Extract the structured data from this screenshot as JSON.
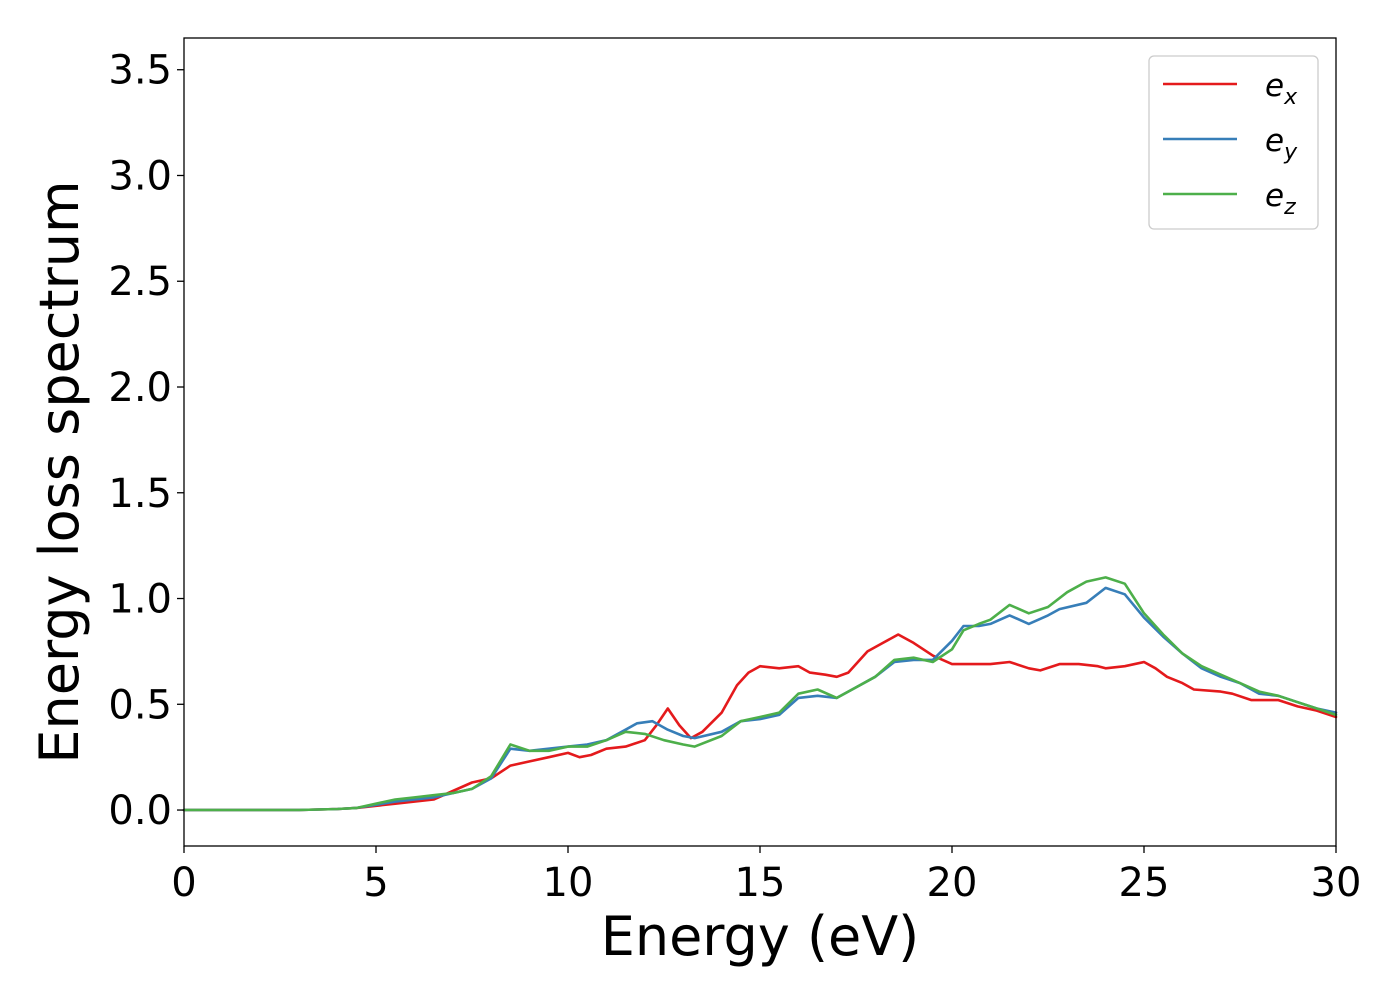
{
  "chart_data": {
    "type": "line",
    "title": "",
    "xlabel": "Energy (eV)",
    "ylabel": "Energy loss spectrum",
    "xlim": [
      0,
      30
    ],
    "ylim": [
      -0.17,
      3.65
    ],
    "xticks": [
      0,
      5,
      10,
      15,
      20,
      25,
      30
    ],
    "yticks": [
      0.0,
      0.5,
      1.0,
      1.5,
      2.0,
      2.5,
      3.0,
      3.5
    ],
    "xtick_labels": [
      "0",
      "5",
      "10",
      "15",
      "20",
      "25",
      "30"
    ],
    "ytick_labels": [
      "0.0",
      "0.5",
      "1.0",
      "1.5",
      "2.0",
      "2.5",
      "3.0",
      "3.5"
    ],
    "grid": false,
    "legend_position": "top-right",
    "series": [
      {
        "name": "e",
        "subscript": "x",
        "color": "#e41a1c",
        "points": [
          [
            0,
            0
          ],
          [
            3,
            0
          ],
          [
            4,
            0.005
          ],
          [
            4.5,
            0.01
          ],
          [
            5,
            0.02
          ],
          [
            5.5,
            0.03
          ],
          [
            6,
            0.04
          ],
          [
            6.5,
            0.05
          ],
          [
            7,
            0.09
          ],
          [
            7.5,
            0.13
          ],
          [
            8,
            0.15
          ],
          [
            8.5,
            0.21
          ],
          [
            9,
            0.23
          ],
          [
            9.5,
            0.25
          ],
          [
            10,
            0.27
          ],
          [
            10.3,
            0.25
          ],
          [
            10.6,
            0.26
          ],
          [
            11,
            0.29
          ],
          [
            11.5,
            0.3
          ],
          [
            12,
            0.33
          ],
          [
            12.3,
            0.4
          ],
          [
            12.6,
            0.48
          ],
          [
            12.9,
            0.4
          ],
          [
            13.2,
            0.34
          ],
          [
            13.5,
            0.37
          ],
          [
            14,
            0.46
          ],
          [
            14.4,
            0.59
          ],
          [
            14.7,
            0.65
          ],
          [
            15,
            0.68
          ],
          [
            15.5,
            0.67
          ],
          [
            16,
            0.68
          ],
          [
            16.3,
            0.65
          ],
          [
            16.7,
            0.64
          ],
          [
            17,
            0.63
          ],
          [
            17.3,
            0.65
          ],
          [
            17.8,
            0.75
          ],
          [
            18.2,
            0.79
          ],
          [
            18.6,
            0.83
          ],
          [
            19,
            0.79
          ],
          [
            19.5,
            0.73
          ],
          [
            20,
            0.69
          ],
          [
            20.5,
            0.69
          ],
          [
            21,
            0.69
          ],
          [
            21.5,
            0.7
          ],
          [
            22,
            0.67
          ],
          [
            22.3,
            0.66
          ],
          [
            22.8,
            0.69
          ],
          [
            23.3,
            0.69
          ],
          [
            23.8,
            0.68
          ],
          [
            24,
            0.67
          ],
          [
            24.5,
            0.68
          ],
          [
            25,
            0.7
          ],
          [
            25.3,
            0.67
          ],
          [
            25.6,
            0.63
          ],
          [
            26,
            0.6
          ],
          [
            26.3,
            0.57
          ],
          [
            27,
            0.56
          ],
          [
            27.3,
            0.55
          ],
          [
            27.8,
            0.52
          ],
          [
            28.5,
            0.52
          ],
          [
            29,
            0.49
          ],
          [
            29.5,
            0.47
          ],
          [
            30,
            0.44
          ]
        ]
      },
      {
        "name": "e",
        "subscript": "y",
        "color": "#377eb8",
        "points": [
          [
            0,
            0
          ],
          [
            3,
            0
          ],
          [
            4,
            0.005
          ],
          [
            4.5,
            0.01
          ],
          [
            5,
            0.025
          ],
          [
            5.5,
            0.04
          ],
          [
            6,
            0.05
          ],
          [
            6.5,
            0.06
          ],
          [
            7,
            0.08
          ],
          [
            7.5,
            0.1
          ],
          [
            8,
            0.15
          ],
          [
            8.5,
            0.29
          ],
          [
            9,
            0.28
          ],
          [
            9.5,
            0.29
          ],
          [
            10,
            0.3
          ],
          [
            10.5,
            0.31
          ],
          [
            11,
            0.33
          ],
          [
            11.5,
            0.38
          ],
          [
            11.8,
            0.41
          ],
          [
            12.2,
            0.42
          ],
          [
            12.6,
            0.38
          ],
          [
            13,
            0.35
          ],
          [
            13.3,
            0.34
          ],
          [
            14,
            0.37
          ],
          [
            14.5,
            0.42
          ],
          [
            15,
            0.43
          ],
          [
            15.5,
            0.45
          ],
          [
            16,
            0.53
          ],
          [
            16.5,
            0.54
          ],
          [
            17,
            0.53
          ],
          [
            17.5,
            0.58
          ],
          [
            18,
            0.63
          ],
          [
            18.5,
            0.7
          ],
          [
            19,
            0.71
          ],
          [
            19.5,
            0.71
          ],
          [
            20,
            0.8
          ],
          [
            20.3,
            0.87
          ],
          [
            20.7,
            0.87
          ],
          [
            21,
            0.88
          ],
          [
            21.5,
            0.92
          ],
          [
            22,
            0.88
          ],
          [
            22.5,
            0.92
          ],
          [
            22.8,
            0.95
          ],
          [
            23.5,
            0.98
          ],
          [
            24,
            1.05
          ],
          [
            24.5,
            1.02
          ],
          [
            25,
            0.91
          ],
          [
            25.5,
            0.82
          ],
          [
            26,
            0.74
          ],
          [
            26.5,
            0.67
          ],
          [
            27,
            0.63
          ],
          [
            27.5,
            0.6
          ],
          [
            28,
            0.55
          ],
          [
            28.5,
            0.54
          ],
          [
            29,
            0.51
          ],
          [
            29.5,
            0.48
          ],
          [
            30,
            0.46
          ]
        ]
      },
      {
        "name": "e",
        "subscript": "z",
        "color": "#4daf4a",
        "points": [
          [
            0,
            0
          ],
          [
            3,
            0
          ],
          [
            4,
            0.005
          ],
          [
            4.5,
            0.01
          ],
          [
            5,
            0.03
          ],
          [
            5.5,
            0.05
          ],
          [
            6,
            0.06
          ],
          [
            6.5,
            0.07
          ],
          [
            7,
            0.08
          ],
          [
            7.5,
            0.1
          ],
          [
            8,
            0.16
          ],
          [
            8.5,
            0.31
          ],
          [
            9,
            0.28
          ],
          [
            9.5,
            0.28
          ],
          [
            10,
            0.3
          ],
          [
            10.5,
            0.3
          ],
          [
            11,
            0.33
          ],
          [
            11.5,
            0.37
          ],
          [
            12,
            0.36
          ],
          [
            12.5,
            0.33
          ],
          [
            13,
            0.31
          ],
          [
            13.3,
            0.3
          ],
          [
            14,
            0.35
          ],
          [
            14.5,
            0.42
          ],
          [
            15,
            0.44
          ],
          [
            15.5,
            0.46
          ],
          [
            16,
            0.55
          ],
          [
            16.5,
            0.57
          ],
          [
            17,
            0.53
          ],
          [
            17.5,
            0.58
          ],
          [
            18,
            0.63
          ],
          [
            18.5,
            0.71
          ],
          [
            19,
            0.72
          ],
          [
            19.5,
            0.7
          ],
          [
            20,
            0.76
          ],
          [
            20.3,
            0.85
          ],
          [
            20.7,
            0.88
          ],
          [
            21,
            0.9
          ],
          [
            21.5,
            0.97
          ],
          [
            22,
            0.93
          ],
          [
            22.5,
            0.96
          ],
          [
            23,
            1.03
          ],
          [
            23.5,
            1.08
          ],
          [
            24,
            1.1
          ],
          [
            24.5,
            1.07
          ],
          [
            25,
            0.93
          ],
          [
            25.5,
            0.83
          ],
          [
            26,
            0.74
          ],
          [
            26.5,
            0.68
          ],
          [
            27,
            0.64
          ],
          [
            27.5,
            0.6
          ],
          [
            28,
            0.56
          ],
          [
            28.5,
            0.54
          ],
          [
            29,
            0.51
          ],
          [
            29.5,
            0.48
          ],
          [
            30,
            0.45
          ]
        ]
      }
    ]
  }
}
